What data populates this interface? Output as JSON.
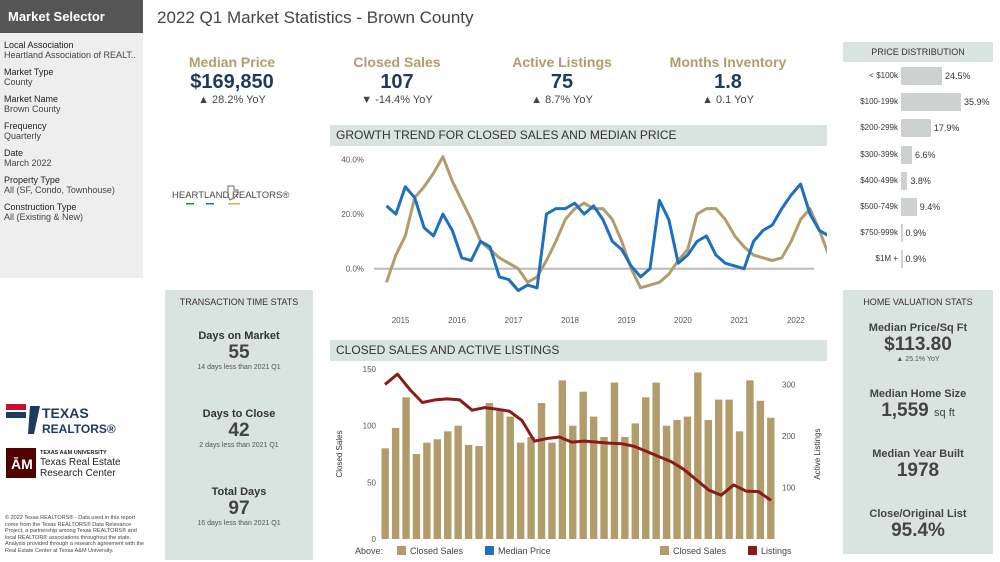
{
  "sidebar": {
    "header": "Market Selector",
    "filters": [
      {
        "label": "Local Association",
        "value": "Heartland Association of REALT.."
      },
      {
        "label": "Market Type",
        "value": "County"
      },
      {
        "label": "Market Name",
        "value": "Brown County"
      },
      {
        "label": "Frequency",
        "value": "Quarterly"
      },
      {
        "label": "Date",
        "value": "March 2022"
      },
      {
        "label": "Property Type",
        "value": "All (SF, Condo, Townhouse)"
      },
      {
        "label": "Construction Type",
        "value": "All (Existing & New)"
      }
    ]
  },
  "page_title": "2022 Q1 Market Statistics - Brown County",
  "kpis": [
    {
      "label": "Median Price",
      "value": "$169,850",
      "delta": "▲ 28.2% YoY"
    },
    {
      "label": "Closed Sales",
      "value": "107",
      "delta": "▼ -14.4% YoY"
    },
    {
      "label": "Active Listings",
      "value": "75",
      "delta": "▲ 8.7% YoY"
    },
    {
      "label": "Months Inventory",
      "value": "1.8",
      "delta": "▲ 0.1 YoY"
    }
  ],
  "heartland_logo": {
    "text": "HEARTLAND REALTORS®"
  },
  "colors": {
    "gold": "#b29c6c",
    "navy": "#1f3a5f",
    "median_price_line": "#1f6fbf",
    "listings_line": "#8b1a1a",
    "panel_bg": "#d9e3df"
  },
  "growth_chart_title": "GROWTH TREND FOR CLOSED SALES AND MEDIAN PRICE",
  "sales_chart_title": "CLOSED SALES AND ACTIVE LISTINGS",
  "transaction": {
    "title": "TRANSACTION TIME STATS",
    "items": [
      {
        "label": "Days on Market",
        "value": "55",
        "note": "14 days less than 2021 Q1"
      },
      {
        "label": "Days to Close",
        "value": "42",
        "note": "2 days less than 2021 Q1"
      },
      {
        "label": "Total Days",
        "value": "97",
        "note": "16 days less than 2021 Q1"
      }
    ]
  },
  "price_distribution": {
    "title": "PRICE DISTRIBUTION",
    "rows": [
      {
        "label": "< $100k",
        "pct": 24.5,
        "text": "24.5%"
      },
      {
        "label": "$100-199k",
        "pct": 35.9,
        "text": "35.9%"
      },
      {
        "label": "$200-299k",
        "pct": 17.9,
        "text": "17.9%"
      },
      {
        "label": "$300-399k",
        "pct": 6.6,
        "text": "6.6%"
      },
      {
        "label": "$400-499k",
        "pct": 3.8,
        "text": "3.8%"
      },
      {
        "label": "$500-749k",
        "pct": 9.4,
        "text": "9.4%"
      },
      {
        "label": "$750-999k",
        "pct": 0.9,
        "text": "0.9%"
      },
      {
        "label": "$1M +",
        "pct": 0.9,
        "text": "0.9%"
      }
    ]
  },
  "home_valuation": {
    "title": "HOME VALUATION STATS",
    "items": [
      {
        "label": "Median Price/Sq Ft",
        "value": "$113.80",
        "unit": "",
        "note": "▲ 25.1% YoY"
      },
      {
        "label": "Median Home Size",
        "value": "1,559",
        "unit": "sq ft",
        "note": ""
      },
      {
        "label": "Median Year Built",
        "value": "1978",
        "unit": "",
        "note": ""
      },
      {
        "label": "Close/Original List",
        "value": "95.4%",
        "unit": "",
        "note": ""
      }
    ]
  },
  "texas_logo": {
    "line1": "TEXAS",
    "line2": "REALTORS®"
  },
  "tamu_logo": {
    "line1": "TEXAS A&M UNIVERSITY",
    "line2": "Texas Real Estate",
    "line3": "Research Center"
  },
  "copyright": "© 2022 Texas REALTORS® - Data used in this report come from the Texas REALTORS® Data Relevance Project, a partnership among Texas REALTORS® and local REALTOR® associations throughout the state. Analysis provided through a research agreement with the Real Estate Center at Texas A&M University.",
  "legend": {
    "above": "Above:",
    "items": [
      "Closed Sales",
      "Median Price",
      "Closed Sales",
      "Listings"
    ]
  },
  "chart_data": [
    {
      "type": "line",
      "title": "GROWTH TREND FOR CLOSED SALES AND MEDIAN PRICE",
      "x_ticks": [
        "2015",
        "2016",
        "2017",
        "2018",
        "2019",
        "2020",
        "2021",
        "2022"
      ],
      "y_ticks": [
        "40.0%",
        "20.0%",
        "0.0%"
      ],
      "ylim": [
        -10,
        42
      ],
      "x_start": 2014.75,
      "x_step": 0.25,
      "series": [
        {
          "name": "Closed Sales",
          "color": "#b29c6c",
          "values": [
            -5,
            5,
            12,
            26,
            30,
            35,
            41,
            32,
            25,
            18,
            10,
            7,
            4,
            2,
            0,
            -5,
            -3,
            3,
            10,
            18,
            22,
            24,
            22,
            22,
            18,
            10,
            0,
            -7,
            -6,
            -5,
            -2,
            3,
            7,
            20,
            22,
            22,
            18,
            12,
            8,
            5,
            4,
            3,
            4,
            10,
            18,
            22,
            14,
            5,
            3
          ]
        },
        {
          "name": "Median Price",
          "color": "#1f6fbf",
          "values": [
            23,
            20,
            30,
            26,
            15,
            12,
            20,
            14,
            4,
            3,
            10,
            8,
            -3,
            -4,
            -8,
            -6,
            -7,
            20,
            22,
            22,
            24,
            20,
            23,
            18,
            10,
            7,
            1,
            -3,
            0,
            25,
            18,
            2,
            5,
            10,
            12,
            5,
            2,
            1,
            0,
            10,
            14,
            16,
            22,
            27,
            31,
            20,
            14,
            12,
            10
          ]
        }
      ]
    },
    {
      "type": "bar",
      "title": "CLOSED SALES AND ACTIVE LISTINGS",
      "ylabel": "Closed Sales",
      "y2label": "Active Listings",
      "y_ticks": [
        0,
        50,
        100,
        150
      ],
      "y2_ticks": [
        100,
        200,
        300
      ],
      "ylim": [
        0,
        150
      ],
      "y2lim": [
        0,
        330
      ],
      "series": [
        {
          "name": "Closed Sales",
          "color": "#b29c6c",
          "values": [
            80,
            98,
            125,
            75,
            85,
            88,
            95,
            100,
            83,
            82,
            120,
            115,
            108,
            85,
            90,
            120,
            85,
            140,
            100,
            130,
            108,
            90,
            138,
            90,
            102,
            125,
            138,
            100,
            105,
            108,
            147,
            105,
            123,
            123,
            95,
            140,
            122,
            107
          ]
        },
        {
          "name": "Listings",
          "color": "#8b1a1a",
          "values": [
            300,
            320,
            290,
            265,
            270,
            272,
            270,
            250,
            255,
            252,
            248,
            230,
            190,
            195,
            198,
            188,
            190,
            188,
            186,
            185,
            180,
            170,
            160,
            150,
            135,
            115,
            95,
            85,
            105,
            93,
            92,
            75
          ]
        }
      ]
    }
  ]
}
